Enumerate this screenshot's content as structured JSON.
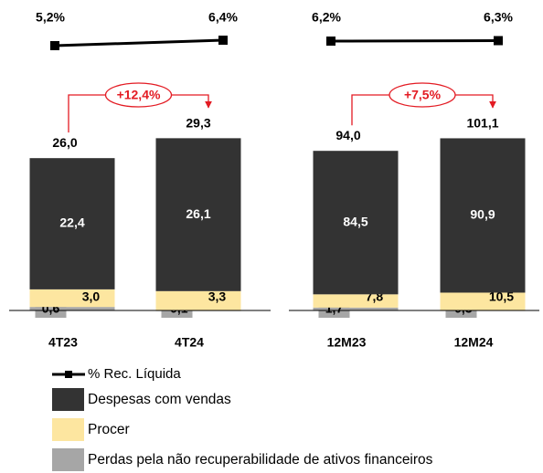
{
  "chart_data": [
    {
      "type": "bar",
      "categories": [
        "4T23",
        "4T24"
      ],
      "series": [
        {
          "name": "Perdas pela não recuperabilidade de ativos financeiros",
          "color": "#a6a6a6",
          "values": [
            0.6,
            -0.1
          ],
          "value_labels": [
            "0,6",
            "-0,1"
          ]
        },
        {
          "name": "Procer",
          "color": "#fde6a0",
          "values": [
            3.0,
            3.3
          ],
          "value_labels": [
            "3,0",
            "3,3"
          ]
        },
        {
          "name": "Despesas com vendas",
          "color": "#333333",
          "values": [
            22.4,
            26.1
          ],
          "value_labels": [
            "22,4",
            "26,1"
          ]
        },
        {
          "name": "% Rec. Líquida",
          "type": "line",
          "color": "#000000",
          "values": [
            5.2,
            6.4
          ],
          "value_labels": [
            "5,2%",
            "6,4%"
          ]
        }
      ],
      "totals": [
        26.0,
        29.3
      ],
      "total_labels": [
        "26,0",
        "29,3"
      ],
      "annotation": "+12,4%"
    },
    {
      "type": "bar",
      "categories": [
        "12M23",
        "12M24"
      ],
      "series": [
        {
          "color": "#a6a6a6",
          "values": [
            1.7,
            -0.3
          ],
          "value_labels": [
            "1,7",
            "-0,3"
          ]
        },
        {
          "color": "#fde6a0",
          "values": [
            7.8,
            10.5
          ],
          "value_labels": [
            "7,8",
            "10,5"
          ]
        },
        {
          "color": "#333333",
          "values": [
            84.5,
            90.9
          ],
          "value_labels": [
            "84,5",
            "90,9"
          ]
        },
        {
          "type": "line",
          "color": "#000000",
          "values": [
            6.2,
            6.3
          ],
          "value_labels": [
            "6,2%",
            "6,3%"
          ]
        }
      ],
      "totals": [
        94.0,
        101.1
      ],
      "total_labels": [
        "94,0",
        "101,1"
      ],
      "annotation": "+7,5%"
    }
  ]
}
